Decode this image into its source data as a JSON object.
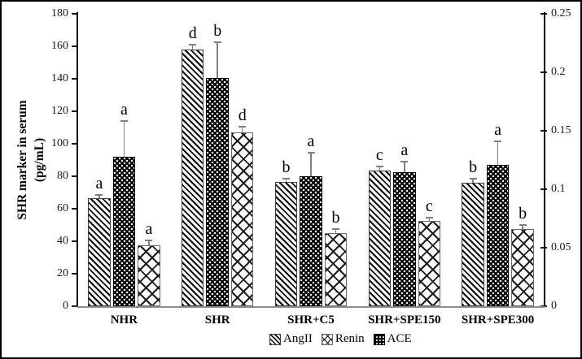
{
  "chart_data": {
    "type": "bar",
    "title": "",
    "categories": [
      "NHR",
      "SHR",
      "SHR+C5",
      "SHR+SPE150",
      "SHR+SPE300"
    ],
    "series": [
      {
        "name": "AngII",
        "pattern": "diagonal-stripes",
        "values": [
          66.5,
          158,
          76.5,
          83.5,
          76
        ],
        "errors_up": [
          2,
          3,
          2,
          2.5,
          2.5
        ],
        "sig_letters": [
          "a",
          "d",
          "b",
          "c",
          "b"
        ]
      },
      {
        "name": "ACE",
        "pattern": "dots-on-black",
        "values": [
          92,
          140.5,
          80,
          82.5,
          87
        ],
        "errors_up": [
          22,
          22,
          14.5,
          6.5,
          14.5
        ],
        "sig_letters": [
          "a",
          "b",
          "a",
          "a",
          "a"
        ]
      },
      {
        "name": "Renin",
        "pattern": "crosshatch",
        "values": [
          37.5,
          107,
          45,
          52.5,
          47.5
        ],
        "errors_up": [
          3,
          3.5,
          2.5,
          2,
          2.5
        ],
        "sig_letters": [
          "a",
          "d",
          "b",
          "c",
          "b"
        ]
      }
    ],
    "axis_left": {
      "label_line1": "SHR marker in serum",
      "label_line2": "(pg/mL)",
      "min": 0,
      "max": 180,
      "step": 20,
      "tick_labels": [
        "0",
        "20",
        "40",
        "60",
        "80",
        "100",
        "120",
        "140",
        "160",
        "180"
      ]
    },
    "axis_right": {
      "min": 0,
      "max": 0.25,
      "step": 0.05,
      "tick_labels": [
        "0",
        "0.05",
        "0.1",
        "0.15",
        "0.2",
        "0.25"
      ]
    },
    "legend": {
      "position": "bottom-center",
      "entries": [
        {
          "label": "AngII",
          "pattern": "diagonal-stripes"
        },
        {
          "label": "Renin",
          "pattern": "crosshatch"
        },
        {
          "label": "ACE",
          "pattern": "dots-on-black"
        }
      ]
    },
    "grid": false,
    "colors": {
      "ink": "#000000",
      "error_bar": "#7f7f7f",
      "baseline": "#8c8c8c",
      "background": "#ffffff"
    }
  }
}
